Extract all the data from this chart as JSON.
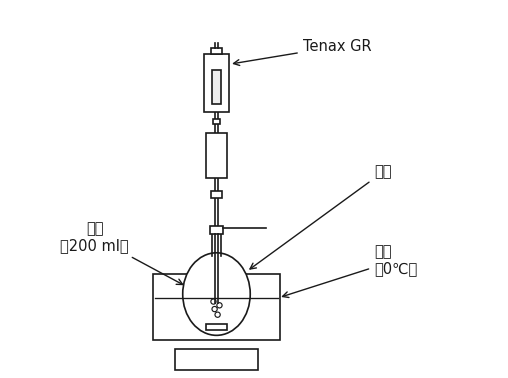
{
  "bg_color": "#ffffff",
  "line_color": "#1a1a1a",
  "label_tenax": "Tenax GR",
  "label_beer": "噌酒\n（200 ml）",
  "label_nitrogen": "氮气",
  "label_waterbath": "水浴\n（0℃）",
  "figsize": [
    5.08,
    3.78
  ],
  "dpi": 100
}
